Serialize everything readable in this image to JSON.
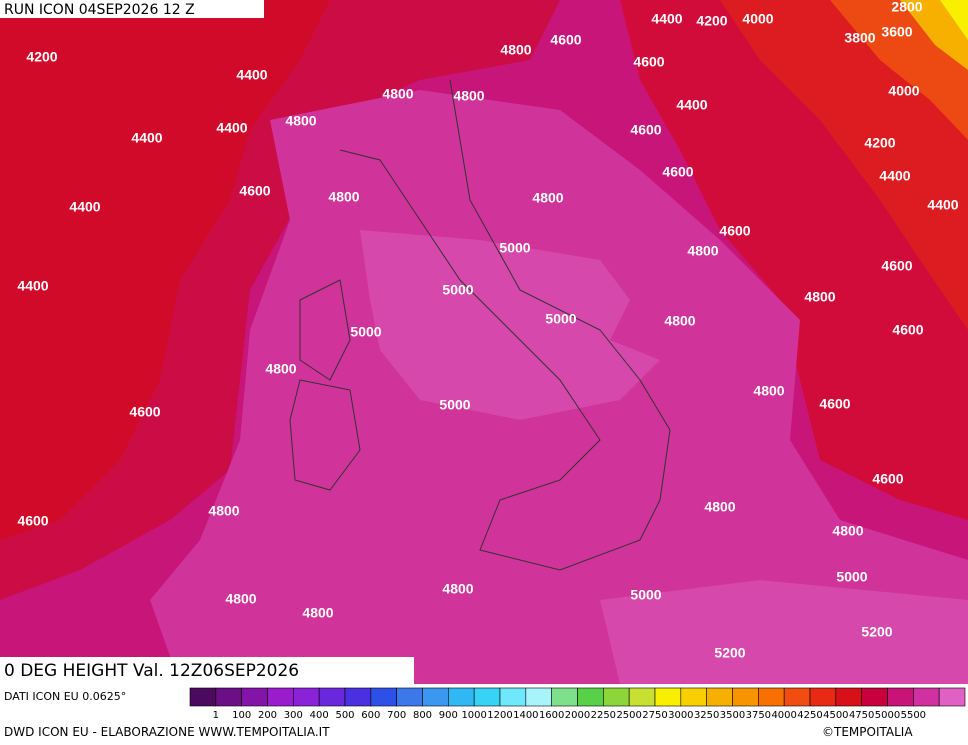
{
  "header": {
    "run": "RUN ICON 04SEP2026 12 Z",
    "title": "0 DEG HEIGHT Val. 12Z06SEP2026"
  },
  "map": {
    "contour_labels": [
      4200,
      4400,
      4400,
      4400,
      4400,
      4600,
      4800,
      4400,
      4800,
      4800,
      4600,
      4400,
      4200,
      4000,
      2800,
      3800,
      3600,
      4600,
      4800,
      4400,
      4000,
      4600,
      4200,
      4600,
      4400,
      4800,
      4400,
      4800,
      4600,
      5000,
      4800,
      4600,
      5000,
      4800,
      5000,
      5000,
      4800,
      4600,
      4800,
      4600,
      5000,
      4800,
      4600,
      4600,
      4800,
      4800,
      4600,
      4800,
      5000,
      4800,
      4800,
      4800,
      5000,
      5200,
      5200
    ]
  },
  "legend": {
    "labels": [
      1,
      100,
      200,
      300,
      400,
      500,
      600,
      700,
      800,
      900,
      1000,
      1200,
      1400,
      1600,
      2000,
      2250,
      2500,
      2750,
      3000,
      3250,
      3500,
      3750,
      4000,
      4250,
      4500,
      4750,
      5000,
      5500
    ],
    "colors": [
      "#4b0a5e",
      "#6a0f86",
      "#8214a8",
      "#9a1ccc",
      "#8a22d8",
      "#6a28dc",
      "#4a30e0",
      "#2d50e6",
      "#3c78ea",
      "#3a98f0",
      "#2fb8f4",
      "#38d2f6",
      "#6ee8fa",
      "#a8f4fa",
      "#7ee08a",
      "#58d048",
      "#8cd63a",
      "#c8e032",
      "#f8f000",
      "#f8d000",
      "#f8b000",
      "#f89400",
      "#f87000",
      "#f04e10",
      "#e82a14",
      "#d8101a",
      "#c8003c",
      "#c81478",
      "#d030a0",
      "#e060c4"
    ]
  },
  "footer": {
    "source": "DATI ICON EU 0.0625°",
    "credit": "DWD ICON EU - ELABORAZIONE WWW.TEMPOITALIA.IT",
    "copyright": "©TEMPOITALIA"
  }
}
